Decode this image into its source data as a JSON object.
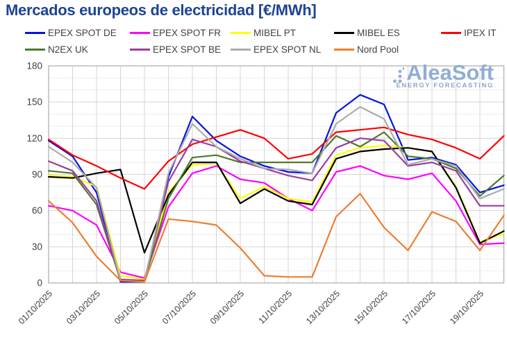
{
  "title": "Mercados europeos de electricidad [€/MWh]",
  "watermark": {
    "brand": "AleaSoft",
    "tagline": "ENERGY FORECASTING"
  },
  "axis_text_color": "#3f3f3f",
  "chart_data": {
    "type": "line",
    "title": "Mercados europeos de electricidad [€/MWh]",
    "xlabel": "",
    "ylabel": "",
    "ylim": [
      0,
      180
    ],
    "y_ticks": [
      "0",
      "30",
      "60",
      "90",
      "120",
      "150",
      "180"
    ],
    "grid": true,
    "legend_position": "top",
    "x_days": 20,
    "x_tick_labels": [
      "01/10/2025",
      "03/10/2025",
      "05/10/2025",
      "07/10/2025",
      "09/10/2025",
      "11/10/2025",
      "13/10/2025",
      "15/10/2025",
      "17/10/2025",
      "19/10/2025"
    ],
    "series": [
      {
        "name": "EPEX SPOT DE",
        "color": "#0013e6",
        "values": [
          118,
          105,
          75,
          1,
          1,
          88,
          138,
          118,
          105,
          97,
          92,
          91,
          141,
          156,
          148,
          102,
          104,
          98,
          75,
          81
        ]
      },
      {
        "name": "EPEX SPOT FR",
        "color": "#ff00ff",
        "values": [
          64,
          60,
          48,
          9,
          4,
          63,
          91,
          97,
          86,
          83,
          70,
          60,
          92,
          97,
          89,
          86,
          91,
          68,
          32,
          33
        ]
      },
      {
        "name": "MIBEL PT",
        "color": "#ffff00",
        "values": [
          89,
          88,
          80,
          6,
          3,
          75,
          98,
          99,
          70,
          80,
          70,
          67,
          106,
          112,
          114,
          112,
          109,
          80,
          34,
          41
        ]
      },
      {
        "name": "MIBEL ES",
        "color": "#000000",
        "values": [
          88,
          87,
          91,
          94,
          25,
          73,
          100,
          100,
          66,
          78,
          68,
          65,
          103,
          109,
          111,
          112,
          109,
          79,
          33,
          43
        ]
      },
      {
        "name": "IPEX IT",
        "color": "#ff0000",
        "values": [
          119,
          106,
          97,
          87,
          78,
          101,
          115,
          121,
          127,
          120,
          103,
          107,
          125,
          127,
          129,
          123,
          119,
          112,
          103,
          122
        ]
      },
      {
        "name": "N2EX UK",
        "color": "#4b7a2b",
        "values": [
          93,
          91,
          65,
          2,
          2,
          70,
          104,
          106,
          100,
          100,
          100,
          100,
          122,
          113,
          125,
          105,
          103,
          95,
          72,
          89
        ]
      },
      {
        "name": "EPEX SPOT BE",
        "color": "#9c3d9c",
        "values": [
          101,
          93,
          68,
          3,
          2,
          84,
          119,
          113,
          101,
          95,
          89,
          85,
          112,
          120,
          118,
          97,
          100,
          93,
          64,
          64
        ]
      },
      {
        "name": "EPEX SPOT NL",
        "color": "#ababab",
        "values": [
          113,
          100,
          79,
          2,
          1,
          91,
          132,
          113,
          103,
          95,
          94,
          91,
          132,
          146,
          136,
          98,
          103,
          97,
          70,
          78
        ]
      },
      {
        "name": "Nord Pool",
        "color": "#ed7d31",
        "values": [
          68,
          50,
          22,
          2,
          1,
          53,
          51,
          48,
          29,
          6,
          5,
          5,
          55,
          74,
          46,
          27,
          59,
          51,
          27,
          56
        ]
      }
    ]
  }
}
